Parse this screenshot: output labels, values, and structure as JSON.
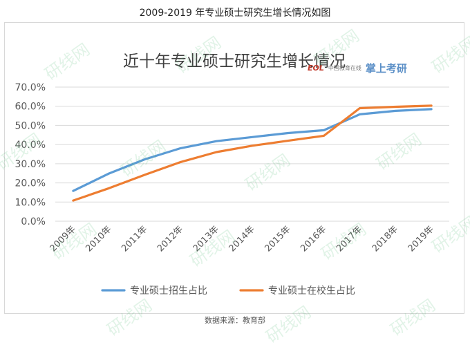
{
  "page_title": "2009-2019 年专业硕士研究生增长情况如图",
  "source": "数据来源：教育部",
  "logos": {
    "eol_text": "EOL",
    "eol_cn": "中国教育在线",
    "zsky_text": "掌上考研"
  },
  "watermark_text": "研线网",
  "colors": {
    "series1": "#5b9bd5",
    "series2": "#ed7d31",
    "grid": "#d9d9d9"
  },
  "chart_data": {
    "type": "line",
    "title": "近十年专业硕士研究生增长情况",
    "xlabel": "",
    "ylabel": "",
    "x": [
      "2009年",
      "2010年",
      "2011年",
      "2012年",
      "2013年",
      "2014年",
      "2015年",
      "2016年",
      "2017年",
      "2018年",
      "2019年"
    ],
    "yticks": [
      "0.0%",
      "10.0%",
      "20.0%",
      "30.0%",
      "40.0%",
      "50.0%",
      "60.0%",
      "70.0%"
    ],
    "ylim": [
      0,
      70
    ],
    "grid": true,
    "legend_position": "bottom",
    "series": [
      {
        "name": "专业硕士招生占比",
        "values": [
          15.8,
          24.9,
          32.3,
          38.1,
          41.8,
          43.9,
          46.0,
          47.5,
          55.8,
          57.6,
          58.5
        ]
      },
      {
        "name": "专业硕士在校生占比",
        "values": [
          10.8,
          17.2,
          24.2,
          30.9,
          36.1,
          39.4,
          42.0,
          44.6,
          59.0,
          59.7,
          60.3
        ]
      }
    ]
  }
}
